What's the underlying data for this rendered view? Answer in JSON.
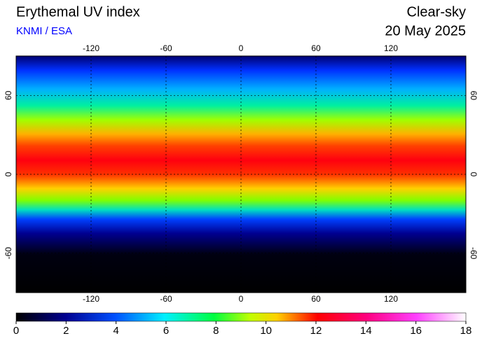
{
  "header": {
    "title": "Erythemal UV index",
    "credit": "KNMI / ESA",
    "sky": "Clear-sky",
    "date": "20 May 2025"
  },
  "map": {
    "lon_range": [
      -180,
      180
    ],
    "lat_range": [
      -90,
      90
    ],
    "lon_ticks": [
      -120,
      -60,
      0,
      60,
      120
    ],
    "lat_ticks": [
      60,
      0,
      -60
    ]
  },
  "colorbar": {
    "range": [
      0,
      18
    ],
    "ticks": [
      0,
      2,
      4,
      6,
      8,
      10,
      12,
      14,
      16,
      18
    ]
  }
}
